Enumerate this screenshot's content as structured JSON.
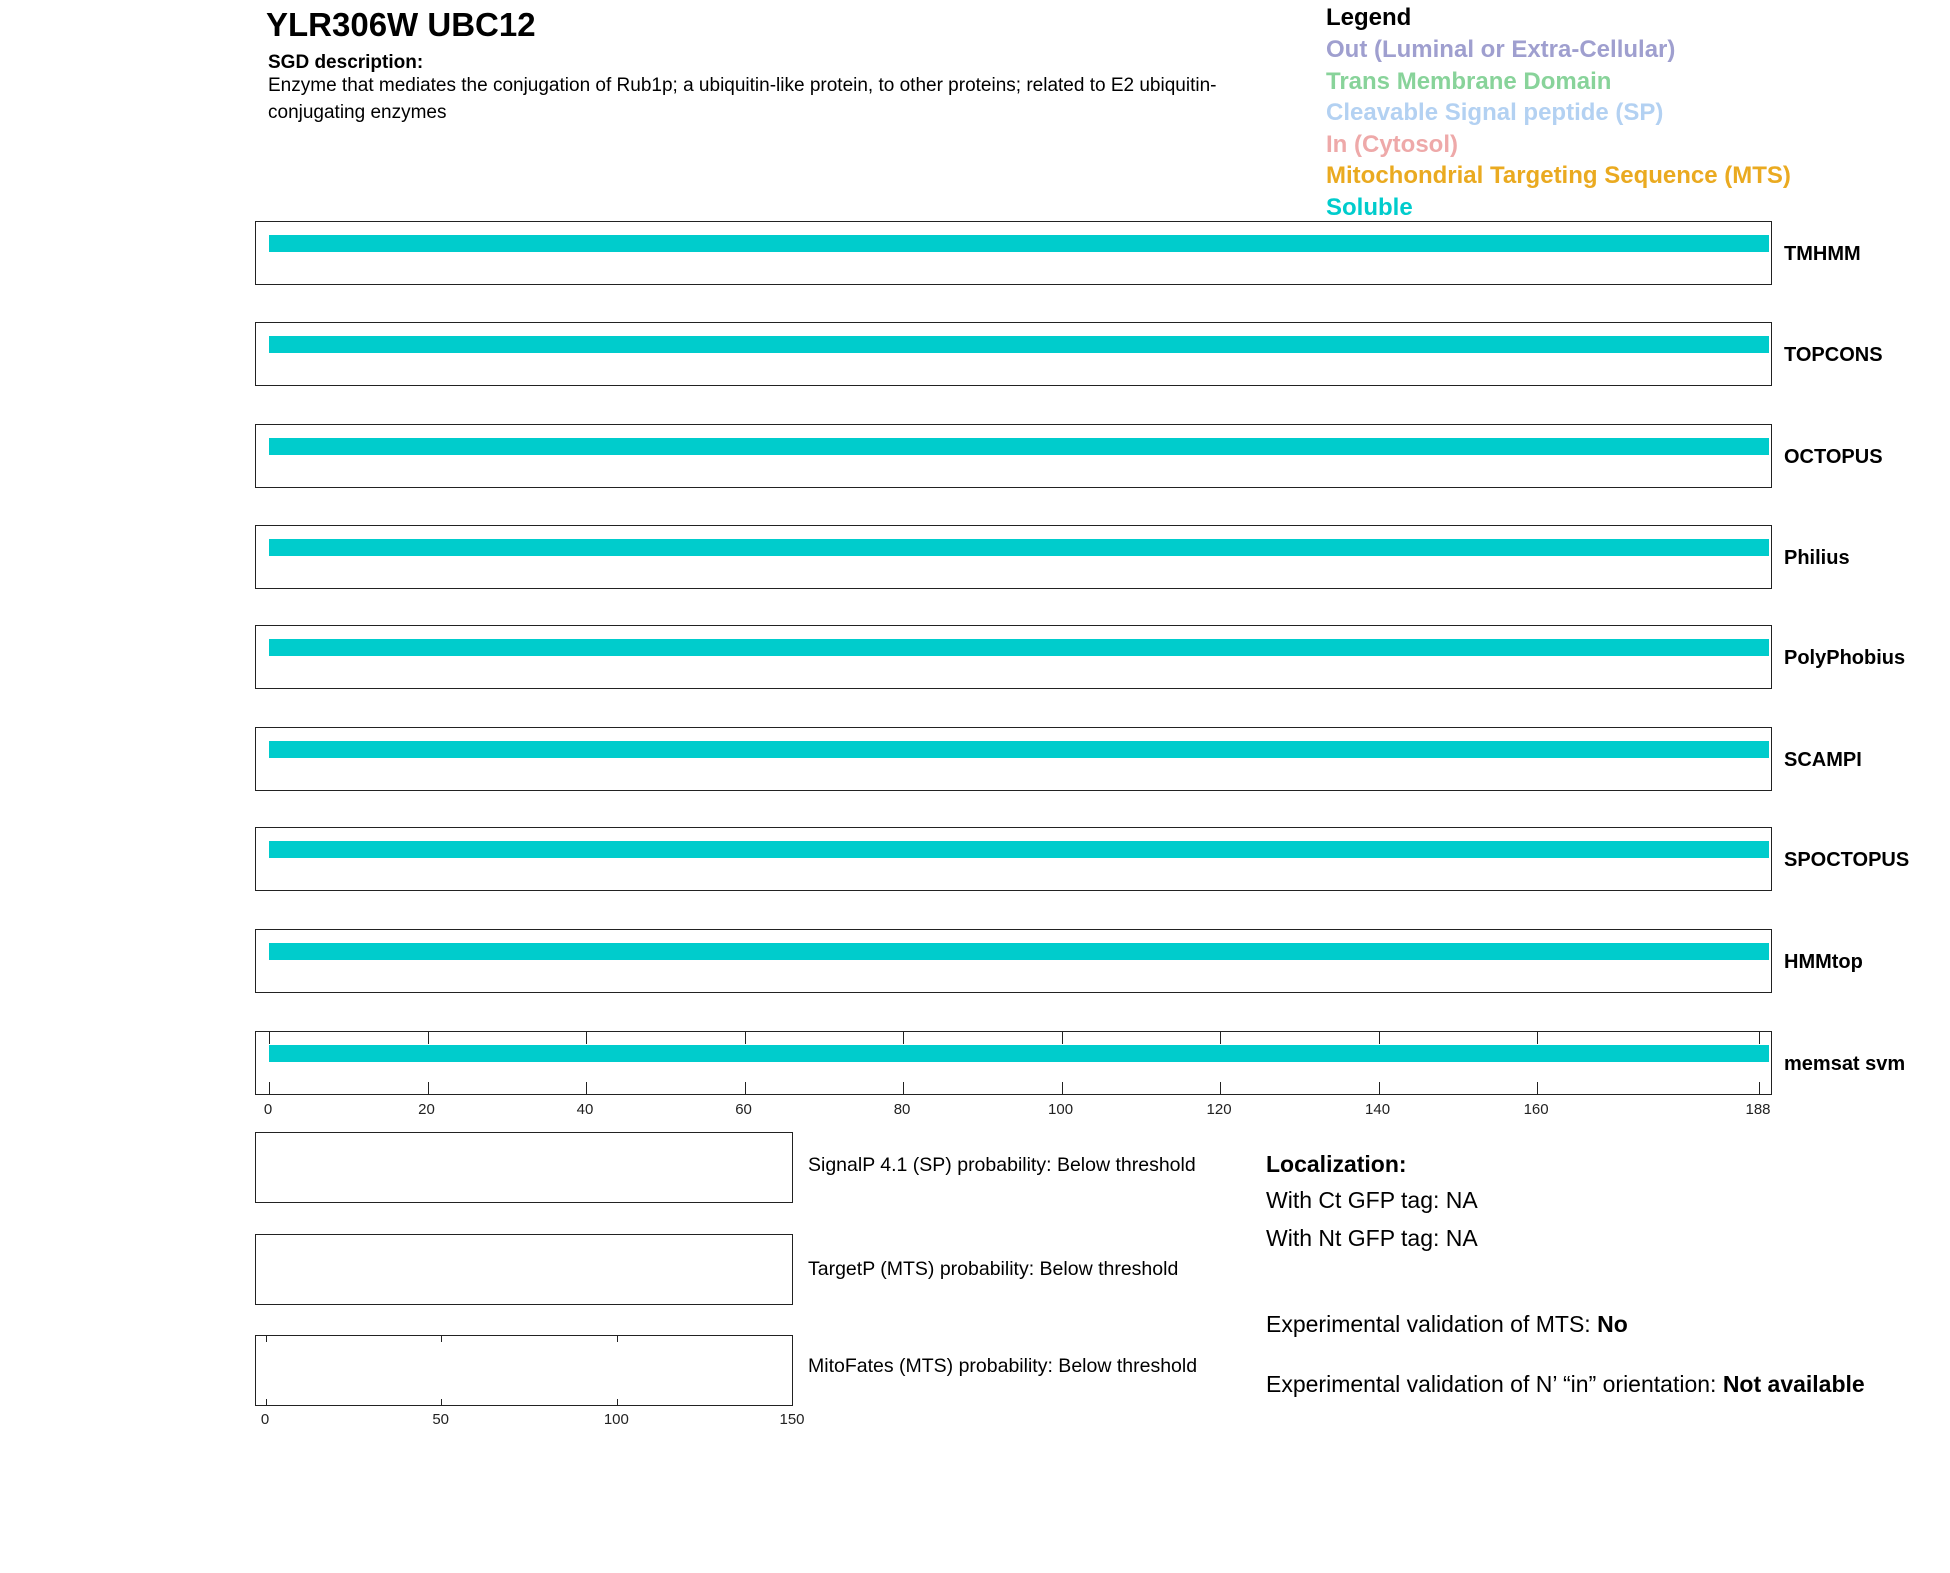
{
  "header": {
    "title": "YLR306W  UBC12",
    "sgd_heading": "SGD description:",
    "description": "Enzyme that mediates the conjugation of Rub1p; a ubiquitin-like protein, to other proteins; related to E2 ubiquitin-conjugating enzymes"
  },
  "legend": {
    "title": "Legend",
    "items": [
      {
        "label": "Out (Luminal or Extra-Cellular)",
        "color": "#9f9fcf"
      },
      {
        "label": "Trans Membrane Domain",
        "color": "#88d39a"
      },
      {
        "label": "Cleavable Signal peptide (SP)",
        "color": "#b3d1f2"
      },
      {
        "label": "In (Cytosol)",
        "color": "#eea9a9"
      },
      {
        "label": "Mitochondrial Targeting Sequence (MTS)",
        "color": "#eaaa20"
      },
      {
        "label": "Soluble",
        "color": "#00cccc"
      }
    ]
  },
  "chart_data": [
    {
      "type": "bar",
      "xlim": [
        0,
        188
      ],
      "x_ticks": [
        "0",
        "20",
        "40",
        "60",
        "80",
        "100",
        "120",
        "140",
        "160",
        "188"
      ],
      "tracks": [
        {
          "name": "TMHMM",
          "segments": [
            {
              "start": 0,
              "end": 188,
              "class": "Soluble"
            }
          ]
        },
        {
          "name": "TOPCONS",
          "segments": [
            {
              "start": 0,
              "end": 188,
              "class": "Soluble"
            }
          ]
        },
        {
          "name": "OCTOPUS",
          "segments": [
            {
              "start": 0,
              "end": 188,
              "class": "Soluble"
            }
          ]
        },
        {
          "name": "Philius",
          "segments": [
            {
              "start": 0,
              "end": 188,
              "class": "Soluble"
            }
          ]
        },
        {
          "name": "PolyPhobius",
          "segments": [
            {
              "start": 0,
              "end": 188,
              "class": "Soluble"
            }
          ]
        },
        {
          "name": "SCAMPI",
          "segments": [
            {
              "start": 0,
              "end": 188,
              "class": "Soluble"
            }
          ]
        },
        {
          "name": "SPOCTOPUS",
          "segments": [
            {
              "start": 0,
              "end": 188,
              "class": "Soluble"
            }
          ]
        },
        {
          "name": "HMMtop",
          "segments": [
            {
              "start": 0,
              "end": 188,
              "class": "Soluble"
            }
          ]
        },
        {
          "name": "memsat svm",
          "segments": [
            {
              "start": 0,
              "end": 188,
              "class": "Soluble"
            }
          ]
        }
      ]
    },
    {
      "type": "line",
      "xlim": [
        0,
        150
      ],
      "x_ticks": [
        "0",
        "50",
        "100",
        "150"
      ],
      "panels": [
        {
          "label": "SignalP 4.1 (SP) probability: Below threshold"
        },
        {
          "label": "TargetP (MTS) probability: Below threshold"
        },
        {
          "label": "MitoFates (MTS) probability: Below threshold"
        }
      ]
    }
  ],
  "localization": {
    "heading": "Localization:",
    "ct": "With Ct GFP tag: NA",
    "nt": "With Nt GFP tag: NA",
    "mts_label": "Experimental validation of MTS: ",
    "mts_value": "No",
    "orient_label": "Experimental validation of N’ “in” orientation: ",
    "orient_value": "Not available"
  }
}
